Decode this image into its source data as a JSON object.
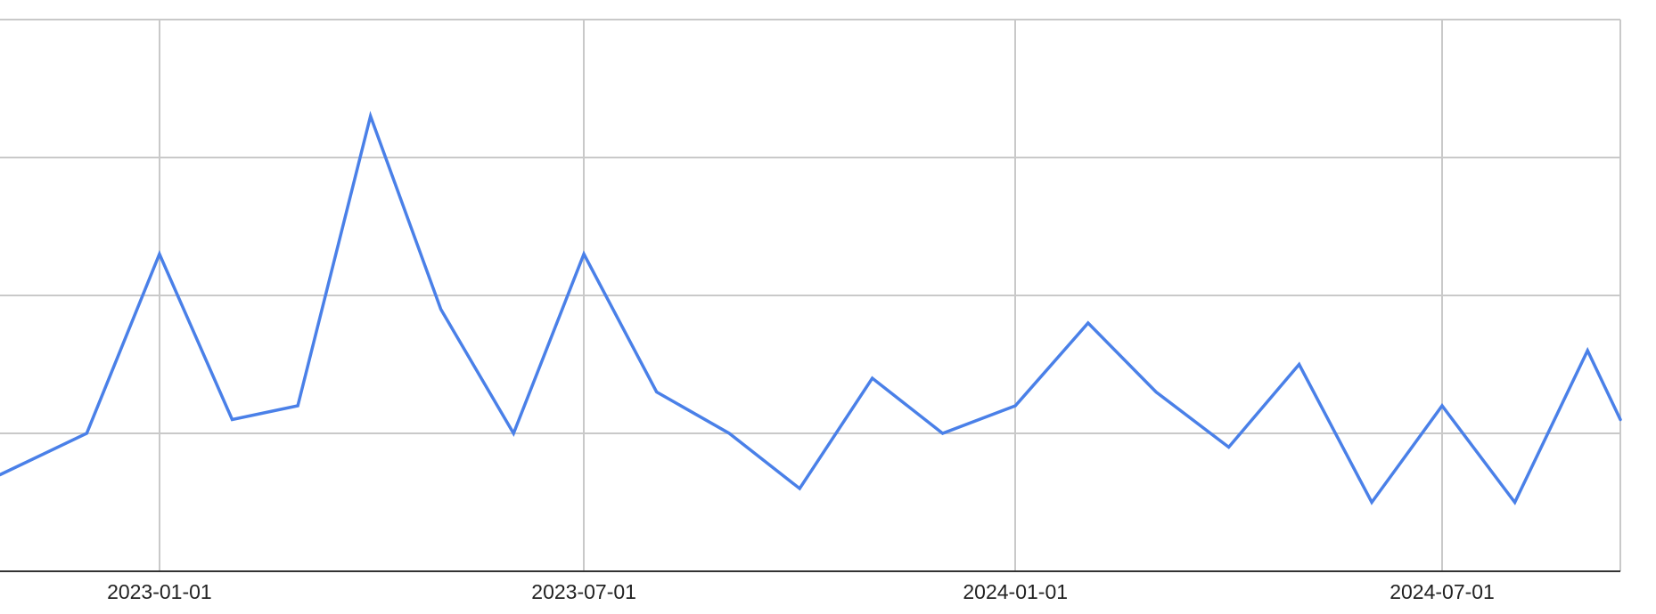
{
  "chart_data": {
    "type": "line",
    "title": "",
    "xlabel": "",
    "ylabel": "",
    "grid": true,
    "legend": "none",
    "x_ticks": [
      "2023-01-01",
      "2023-07-01",
      "2024-01-01",
      "2024-07-01"
    ],
    "y_ticks": [
      0,
      1,
      2,
      3,
      4
    ],
    "y_tick_labels_visible": false,
    "xlim": [
      "2022-10-25",
      "2024-09-15"
    ],
    "ylim": [
      0,
      4
    ],
    "series": [
      {
        "color": "#4a80e8",
        "points": [
          {
            "x": "2022-10-25",
            "y": 0.7
          },
          {
            "x": "2022-12-01",
            "y": 1.0
          },
          {
            "x": "2023-01-01",
            "y": 2.3
          },
          {
            "x": "2023-02-01",
            "y": 1.1
          },
          {
            "x": "2023-03-01",
            "y": 1.2
          },
          {
            "x": "2023-04-01",
            "y": 3.3
          },
          {
            "x": "2023-05-01",
            "y": 1.9
          },
          {
            "x": "2023-06-01",
            "y": 1.0
          },
          {
            "x": "2023-07-01",
            "y": 2.3
          },
          {
            "x": "2023-08-01",
            "y": 1.3
          },
          {
            "x": "2023-09-01",
            "y": 1.0
          },
          {
            "x": "2023-10-01",
            "y": 0.6
          },
          {
            "x": "2023-11-01",
            "y": 1.4
          },
          {
            "x": "2023-12-01",
            "y": 1.0
          },
          {
            "x": "2024-01-01",
            "y": 1.2
          },
          {
            "x": "2024-02-01",
            "y": 1.8
          },
          {
            "x": "2024-03-01",
            "y": 1.3
          },
          {
            "x": "2024-04-01",
            "y": 0.9
          },
          {
            "x": "2024-05-01",
            "y": 1.5
          },
          {
            "x": "2024-06-01",
            "y": 0.5
          },
          {
            "x": "2024-07-01",
            "y": 1.2
          },
          {
            "x": "2024-08-01",
            "y": 0.5
          },
          {
            "x": "2024-09-01",
            "y": 1.6
          },
          {
            "x": "2024-09-15",
            "y": 1.1
          }
        ]
      }
    ]
  }
}
